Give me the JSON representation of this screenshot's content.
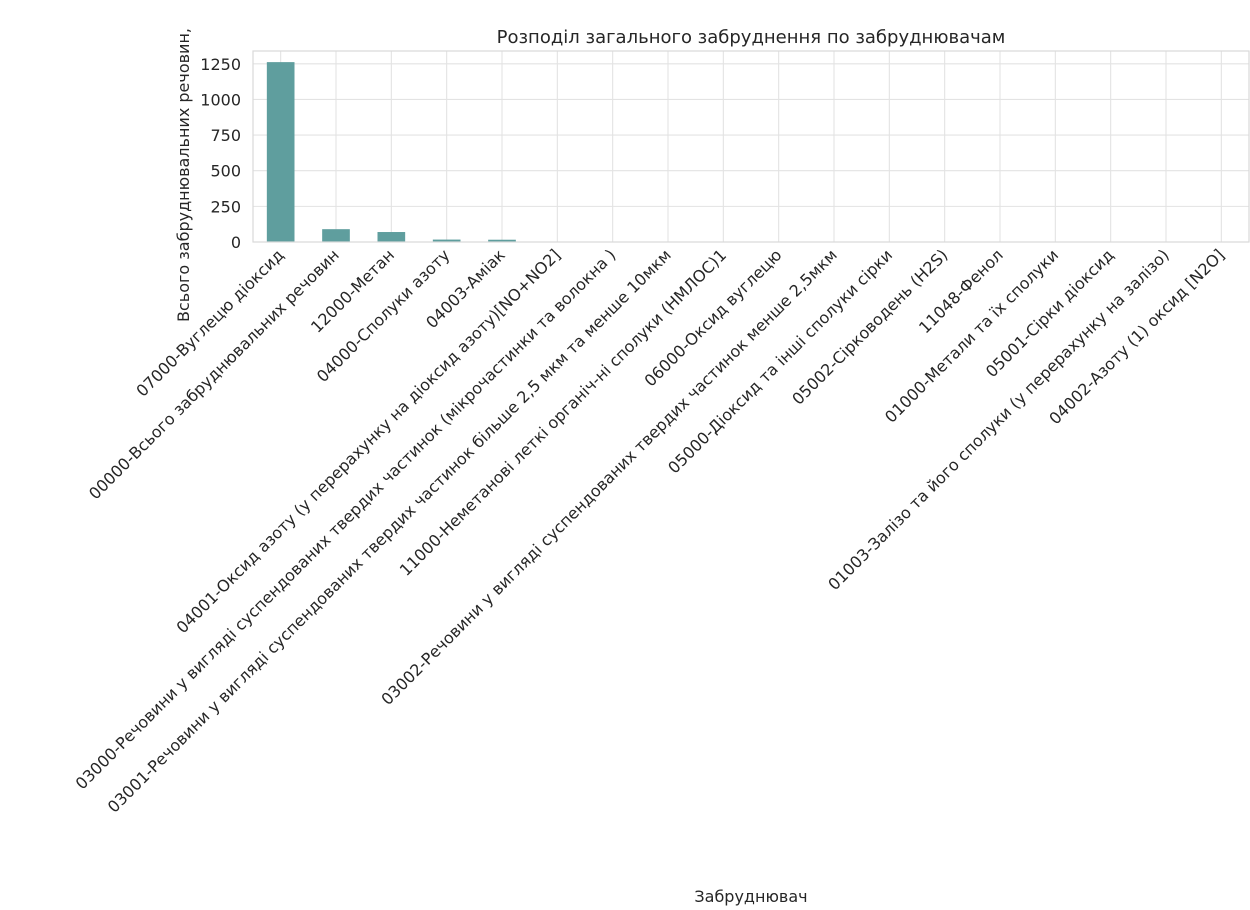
{
  "chart_data": {
    "type": "bar",
    "title": "Розподіл загального забруднення по забруднювачам",
    "xlabel": "Забруднювач",
    "ylabel": "Всього забруднювальних речовин,",
    "ylim": [
      0,
      1340
    ],
    "yticks": [
      0,
      250,
      500,
      750,
      1000,
      1250
    ],
    "grid": true,
    "bar_color": "#5f9e9e",
    "grid_color": "#e3e3e3",
    "categories": [
      "07000-Вуглецю діоксид",
      "00000-Всього забруднювальних речовин",
      "12000-Метан",
      "04000-Сполуки азоту",
      "04003-Аміак",
      "04001-Оксид азоту (у перерахунку на діоксид азоту)[NO+NO2]",
      "03000-Речовини у вигляді суспендованих твердих частинок (мікрочастинки та волокна )",
      "03001-Речовини у вигляді суспендованих твердих частинок більше 2,5 мкм та менше 10мкм",
      "11000-Неметанові леткі органіч-ні сполуки (НМЛОС)1",
      "06000-Оксид вуглецю",
      "03002-Речовини у вигляді суспендованих твердих частинок менше 2,5мкм",
      "05000-Діоксид та інші сполуки сірки",
      "05002-Сірководень (H2S)",
      "11048-Фенол",
      "01000-Метали та їх сполуки",
      "05001-Сірки діоксид",
      "01003-Залізо та його сполуки (у перерахунку на залізо)",
      "04002-Азоту (1) оксид [N2O]"
    ],
    "values": [
      1262,
      90,
      70,
      17,
      16,
      3,
      2,
      2,
      2,
      1.5,
      1,
      0.5,
      0.3,
      0.2,
      0.1,
      0.1,
      0.05,
      0.05
    ]
  }
}
